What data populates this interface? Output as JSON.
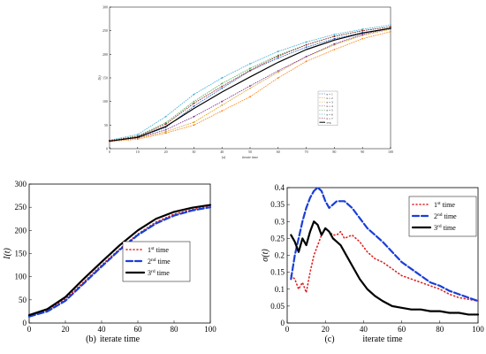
{
  "chart_data": [
    {
      "id": "a",
      "type": "line",
      "panel_label": "(a)",
      "xlabel": "iterate time",
      "ylabel": "I(t)",
      "xlim": [
        0,
        100
      ],
      "ylim": [
        0,
        300
      ],
      "xticks": [
        0,
        10,
        20,
        30,
        40,
        50,
        60,
        70,
        80,
        90,
        100
      ],
      "yticks": [
        0,
        50,
        100,
        150,
        200,
        250,
        300
      ],
      "grid": false,
      "legend_position": "center-right",
      "series": [
        {
          "name": "n = 1",
          "color": "#1f5fbf",
          "style": "dotted-marker",
          "x": [
            0,
            10,
            20,
            30,
            40,
            50,
            60,
            70,
            80,
            90,
            100
          ],
          "y": [
            17,
            24,
            45,
            90,
            128,
            165,
            192,
            215,
            233,
            246,
            255
          ]
        },
        {
          "name": "n = 2",
          "color": "#ff7f0e",
          "style": "dotted-marker",
          "x": [
            0,
            10,
            20,
            30,
            40,
            50,
            60,
            70,
            80,
            90,
            100
          ],
          "y": [
            15,
            20,
            33,
            50,
            80,
            110,
            150,
            185,
            210,
            233,
            248
          ]
        },
        {
          "name": "n = 3",
          "color": "#d4a017",
          "style": "dotted-marker",
          "x": [
            0,
            10,
            20,
            30,
            40,
            50,
            60,
            70,
            80,
            90,
            100
          ],
          "y": [
            16,
            22,
            36,
            56,
            92,
            128,
            162,
            195,
            220,
            240,
            253
          ]
        },
        {
          "name": "n = 4",
          "color": "#7b2d8e",
          "style": "dotted-marker",
          "x": [
            0,
            10,
            20,
            30,
            40,
            50,
            60,
            70,
            80,
            90,
            100
          ],
          "y": [
            16,
            23,
            40,
            68,
            100,
            133,
            165,
            195,
            222,
            242,
            255
          ]
        },
        {
          "name": "n = 5",
          "color": "#4caf50",
          "style": "dotted-marker",
          "x": [
            0,
            10,
            20,
            30,
            40,
            50,
            60,
            70,
            80,
            90,
            100
          ],
          "y": [
            17,
            27,
            55,
            100,
            138,
            170,
            198,
            220,
            238,
            250,
            258
          ]
        },
        {
          "name": "n = 6",
          "color": "#3aaad8",
          "style": "dotted-marker",
          "x": [
            0,
            10,
            20,
            30,
            40,
            50,
            60,
            70,
            80,
            90,
            100
          ],
          "y": [
            18,
            30,
            68,
            115,
            150,
            180,
            206,
            226,
            242,
            253,
            262
          ]
        },
        {
          "name": "n = 7",
          "color": "#8b1a1a",
          "style": "dotted-marker",
          "x": [
            0,
            10,
            20,
            30,
            40,
            50,
            60,
            70,
            80,
            90,
            100
          ],
          "y": [
            17,
            26,
            52,
            96,
            132,
            166,
            196,
            220,
            238,
            250,
            258
          ]
        },
        {
          "name": "avg",
          "color": "#000000",
          "style": "solid",
          "x": [
            0,
            10,
            20,
            30,
            40,
            50,
            60,
            70,
            80,
            90,
            100
          ],
          "y": [
            16,
            24,
            47,
            85,
            120,
            152,
            183,
            210,
            230,
            245,
            255
          ]
        }
      ]
    },
    {
      "id": "b",
      "type": "line",
      "panel_label": "(b)",
      "xlabel": "iterate time",
      "ylabel": "I(t)",
      "xlim": [
        0,
        100
      ],
      "ylim": [
        0,
        300
      ],
      "xticks": [
        0,
        20,
        40,
        60,
        80,
        100
      ],
      "yticks": [
        0,
        50,
        100,
        150,
        200,
        250,
        300
      ],
      "grid": false,
      "legend_position": "center-right",
      "series": [
        {
          "name": "1",
          "suffix": "st",
          "tail": " time",
          "color": "#e02020",
          "style": "dotted",
          "x": [
            0,
            10,
            20,
            30,
            40,
            50,
            60,
            70,
            80,
            90,
            100
          ],
          "y": [
            16,
            28,
            52,
            88,
            125,
            160,
            192,
            218,
            235,
            245,
            252
          ]
        },
        {
          "name": "2",
          "suffix": "nd",
          "tail": " time",
          "color": "#1a3fd6",
          "style": "dashed",
          "x": [
            0,
            10,
            20,
            30,
            40,
            50,
            60,
            70,
            80,
            90,
            100
          ],
          "y": [
            14,
            25,
            48,
            85,
            122,
            158,
            190,
            215,
            232,
            243,
            250
          ]
        },
        {
          "name": "3",
          "suffix": "rd",
          "tail": " time",
          "color": "#000000",
          "style": "solid",
          "x": [
            0,
            10,
            20,
            30,
            40,
            50,
            60,
            70,
            80,
            90,
            100
          ],
          "y": [
            17,
            30,
            56,
            95,
            132,
            168,
            200,
            225,
            240,
            249,
            255
          ]
        }
      ]
    },
    {
      "id": "c",
      "type": "line",
      "panel_label": "(c)",
      "xlabel": "iterate time",
      "ylabel": "σ(t)",
      "xlim": [
        0,
        100
      ],
      "ylim": [
        0,
        0.4
      ],
      "xticks": [
        0,
        20,
        40,
        60,
        80,
        100
      ],
      "yticks": [
        0,
        0.05,
        0.1,
        0.15,
        0.2,
        0.25,
        0.3,
        0.35,
        0.4
      ],
      "ytick_labels": [
        "0",
        "0.05",
        "0.1",
        "0.15",
        "0.2",
        "0.25",
        "0.3",
        "0.35",
        "0.4"
      ],
      "grid": false,
      "legend_position": "top-right",
      "series": [
        {
          "name": "1",
          "suffix": "st",
          "tail": " time",
          "color": "#e02020",
          "style": "dotted",
          "x": [
            2,
            4,
            6,
            8,
            10,
            12,
            14,
            16,
            18,
            20,
            22,
            24,
            26,
            28,
            30,
            34,
            38,
            42,
            46,
            50,
            55,
            60,
            65,
            70,
            75,
            80,
            85,
            90,
            95,
            100
          ],
          "y": [
            0.14,
            0.13,
            0.1,
            0.12,
            0.09,
            0.15,
            0.2,
            0.23,
            0.26,
            0.28,
            0.27,
            0.26,
            0.26,
            0.27,
            0.25,
            0.26,
            0.24,
            0.21,
            0.19,
            0.18,
            0.16,
            0.14,
            0.13,
            0.12,
            0.11,
            0.1,
            0.085,
            0.075,
            0.07,
            0.065
          ]
        },
        {
          "name": "2",
          "suffix": "nd",
          "tail": " time",
          "color": "#1a3fd6",
          "style": "dashed",
          "x": [
            2,
            4,
            6,
            8,
            10,
            12,
            14,
            16,
            18,
            20,
            22,
            24,
            26,
            28,
            30,
            34,
            38,
            42,
            46,
            50,
            55,
            60,
            65,
            70,
            75,
            80,
            85,
            90,
            95,
            100
          ],
          "y": [
            0.13,
            0.2,
            0.25,
            0.3,
            0.34,
            0.37,
            0.39,
            0.4,
            0.39,
            0.36,
            0.34,
            0.35,
            0.36,
            0.36,
            0.36,
            0.34,
            0.31,
            0.28,
            0.26,
            0.24,
            0.21,
            0.18,
            0.16,
            0.14,
            0.12,
            0.11,
            0.095,
            0.085,
            0.075,
            0.065
          ]
        },
        {
          "name": "3",
          "suffix": "rd",
          "tail": " time",
          "color": "#000000",
          "style": "solid",
          "x": [
            2,
            4,
            6,
            8,
            10,
            12,
            14,
            16,
            18,
            20,
            22,
            24,
            26,
            28,
            30,
            34,
            38,
            42,
            46,
            50,
            55,
            60,
            65,
            70,
            75,
            80,
            85,
            90,
            95,
            100
          ],
          "y": [
            0.26,
            0.24,
            0.21,
            0.25,
            0.23,
            0.27,
            0.3,
            0.29,
            0.26,
            0.28,
            0.27,
            0.25,
            0.24,
            0.23,
            0.21,
            0.17,
            0.13,
            0.1,
            0.08,
            0.065,
            0.05,
            0.045,
            0.04,
            0.04,
            0.035,
            0.035,
            0.03,
            0.03,
            0.025,
            0.025
          ]
        }
      ]
    }
  ]
}
